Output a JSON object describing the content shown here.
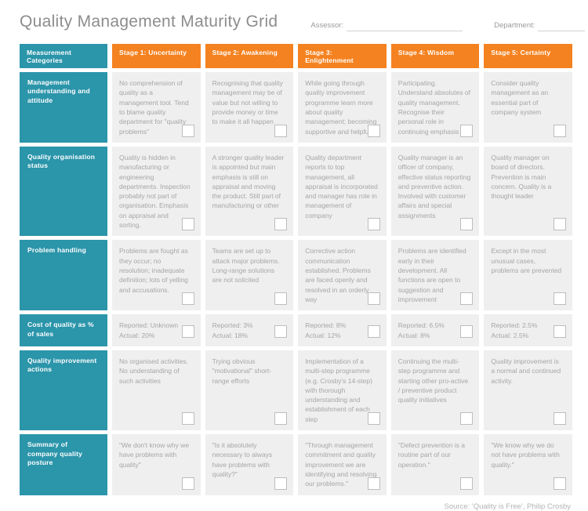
{
  "title": "Quality Management Maturity Grid",
  "fields": {
    "assessor_label": "Assessor:",
    "department_label": "Department:"
  },
  "colors": {
    "teal": "#2b95aa",
    "orange": "#f58220",
    "cell_background": "#efefef"
  },
  "table": {
    "category_header": "Measurement Categories",
    "stage_headers": [
      "Stage 1: Uncertainty",
      "Stage 2: Awakening",
      "Stage 3: Enlightenment",
      "Stage 4: Wisdom",
      "Stage 5: Certainty"
    ],
    "rows": [
      {
        "category": "Management understanding and attitude",
        "cells": [
          "No comprehension of quality as a management tool. Tend to blame quality department for \"quality problems\"",
          "Recognising that quality management may be of value but not willing to provide money or time to make it all happen",
          "While going through quality improvement programme learn more about quality management; becoming supportive and helpful",
          "Participating. Understand absolutes of quality management. Recognise their personal role in continuing emphasis",
          "Consider quality management as an essential part of company system"
        ]
      },
      {
        "category": "Quality organisation status",
        "cells": [
          "Quality is hidden in manufacturing or engineering departments. Inspection probably not part of organisation. Emphasis on appraisal and sorting.",
          "A stronger quality leader is appointed but main emphasis is still on appraisal and moving the product. Still part of manufacturing or other",
          "Quality department reports to top management, all appraisal is incorporated and manager has role in management of company",
          "Quality manager is an officer of company, effective status reporting and preventive action. Involved with customer affairs and special assignments",
          "Quality manager on board of directors. Prevention is main concern. Quality is a thought leader"
        ]
      },
      {
        "category": "Problem handling",
        "cells": [
          "Problems are fought as they occur; no resolution; inadequate definition; lots of yelling and accusations.",
          "Teams are set up to attack major problems. Long-range solutions are not solicited",
          "Corrective action communication established. Problems are faced openly and resolved in an orderly way",
          "Problems are identified early in their development. All functions are open to suggestion and improvement",
          "Except in the most unusual cases, problems are prevented"
        ]
      },
      {
        "category": "Cost of quality as % of sales",
        "cells": [
          "Reported: Unknown\nActual: 20%",
          "Reported: 3%\nActual: 18%",
          "Reported: 8%\nActual: 12%",
          "Reported: 6.5%\nActual: 8%",
          "Reported: 2.5%\nActual: 2.5%"
        ]
      },
      {
        "category": "Quality improvement actions",
        "cells": [
          "No organised activities. No understanding of such activities",
          "Trying obvious \"motivational\" short-range efforts",
          "Implementation of a multi-step programme (e.g. Crosby's 14-step) with thorough understanding and establishment of each step",
          "Continuing the multi-step programme and starting other pro-active / preventive product quality initiatives",
          "Quality improvement is a normal and continued activity."
        ]
      },
      {
        "category": "Summary of company quality posture",
        "cells": [
          "\"We don't know why we have problems with quality\"",
          "\"Is it absolutely necessary to always have problems with quality?\"",
          "\"Through management commitment and quality improvement we are identifying and resolving our problems.\"",
          "\"Defect prevention is a routine part of our operation.\"",
          "\"We know why we do not have problems with quality.\""
        ]
      }
    ]
  },
  "footer": {
    "source": "Source: 'Quality is Free', Philip Crosby"
  }
}
